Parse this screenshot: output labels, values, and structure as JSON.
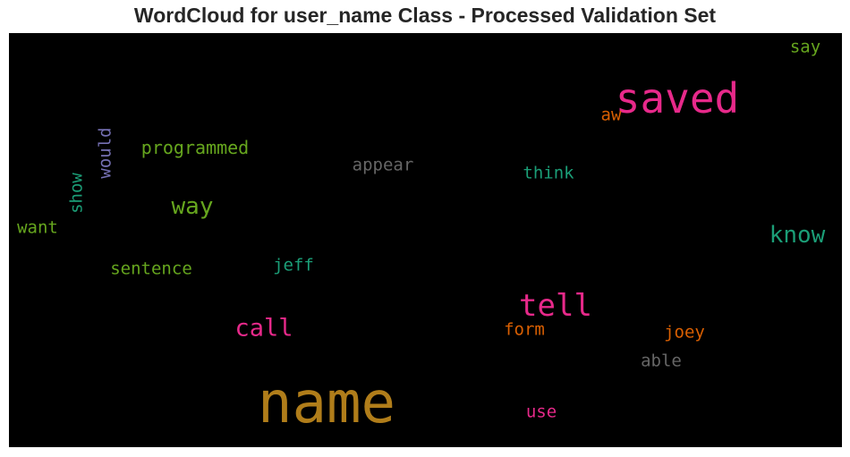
{
  "chart_data": {
    "type": "wordcloud",
    "title": "WordCloud for user_name Class - Processed Validation Set",
    "background": "#000000",
    "words": [
      {
        "text": "name",
        "color": "#b07d1a"
      },
      {
        "text": "saved",
        "color": "#e7298a"
      },
      {
        "text": "tell",
        "color": "#e7298a"
      },
      {
        "text": "call",
        "color": "#e7298a"
      },
      {
        "text": "know",
        "color": "#1b9e77"
      },
      {
        "text": "way",
        "color": "#66a61e"
      },
      {
        "text": "programmed",
        "color": "#66a61e"
      },
      {
        "text": "would",
        "color": "#7570b3"
      },
      {
        "text": "show",
        "color": "#1b9e77"
      },
      {
        "text": "want",
        "color": "#66a61e"
      },
      {
        "text": "appear",
        "color": "#666666"
      },
      {
        "text": "think",
        "color": "#1b9e77"
      },
      {
        "text": "aw",
        "color": "#d95f02"
      },
      {
        "text": "say",
        "color": "#66a61e"
      },
      {
        "text": "sentence",
        "color": "#66a61e"
      },
      {
        "text": "jeff",
        "color": "#1b9e77"
      },
      {
        "text": "form",
        "color": "#d95f02"
      },
      {
        "text": "joey",
        "color": "#d95f02"
      },
      {
        "text": "able",
        "color": "#666666"
      },
      {
        "text": "use",
        "color": "#e7298a"
      }
    ]
  }
}
